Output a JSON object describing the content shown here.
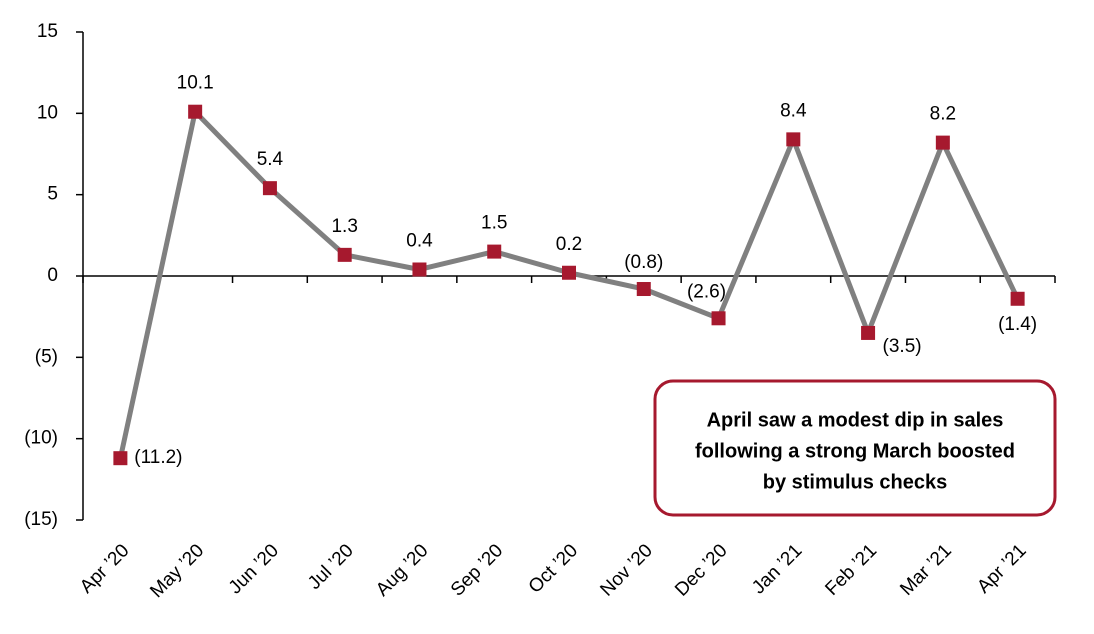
{
  "chart_data": {
    "type": "line",
    "categories": [
      "Apr ’20",
      "May ’20",
      "Jun ’20",
      "Jul ’20",
      "Aug ’20",
      "Sep ’20",
      "Oct ’20",
      "Nov ’20",
      "Dec ’20",
      "Jan ’21",
      "Feb ’21",
      "Mar ’21",
      "Apr ’21"
    ],
    "series": [
      {
        "color": "#808080",
        "marker_color": "#a6192e",
        "values": [
          -11.2,
          10.1,
          5.4,
          1.3,
          0.4,
          1.5,
          0.2,
          -0.8,
          -2.6,
          8.4,
          -3.5,
          8.2,
          -1.4
        ],
        "value_labels": [
          "(11.2)",
          "10.1",
          "5.4",
          "1.3",
          "0.4",
          "1.5",
          "0.2",
          "(0.8)",
          "(2.6)",
          "8.4",
          "(3.5)",
          "8.2",
          "(1.4)"
        ]
      }
    ],
    "ylim": [
      -15,
      15
    ],
    "yticks": [
      {
        "value": -15,
        "label": "(15)"
      },
      {
        "value": -10,
        "label": "(10)"
      },
      {
        "value": -5,
        "label": "(5)"
      },
      0,
      5,
      10,
      15
    ],
    "annotation": [
      "April saw a modest dip in sales",
      "following a strong March boosted",
      "by stimulus checks"
    ],
    "annotation_color": "#a6192e"
  }
}
